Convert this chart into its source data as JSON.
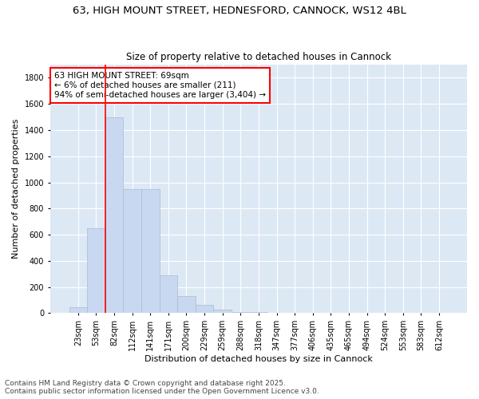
{
  "title_line1": "63, HIGH MOUNT STREET, HEDNESFORD, CANNOCK, WS12 4BL",
  "title_line2": "Size of property relative to detached houses in Cannock",
  "xlabel": "Distribution of detached houses by size in Cannock",
  "ylabel": "Number of detached properties",
  "categories": [
    "23sqm",
    "53sqm",
    "82sqm",
    "112sqm",
    "141sqm",
    "171sqm",
    "200sqm",
    "229sqm",
    "259sqm",
    "288sqm",
    "318sqm",
    "347sqm",
    "377sqm",
    "406sqm",
    "435sqm",
    "465sqm",
    "494sqm",
    "524sqm",
    "553sqm",
    "583sqm",
    "612sqm"
  ],
  "values": [
    45,
    650,
    1500,
    950,
    950,
    290,
    130,
    65,
    25,
    10,
    10,
    0,
    0,
    0,
    0,
    0,
    0,
    0,
    0,
    0,
    0
  ],
  "bar_color": "#c8d8f0",
  "bar_edgecolor": "#aabbd0",
  "vline_x_index": 1,
  "vline_color": "red",
  "annotation_text": "63 HIGH MOUNT STREET: 69sqm\n← 6% of detached houses are smaller (211)\n94% of semi-detached houses are larger (3,404) →",
  "annotation_box_color": "white",
  "annotation_box_edgecolor": "red",
  "ylim": [
    0,
    1900
  ],
  "yticks": [
    0,
    200,
    400,
    600,
    800,
    1000,
    1200,
    1400,
    1600,
    1800
  ],
  "background_color": "#dde8f5",
  "footer_line1": "Contains HM Land Registry data © Crown copyright and database right 2025.",
  "footer_line2": "Contains public sector information licensed under the Open Government Licence v3.0.",
  "title_fontsize": 9.5,
  "subtitle_fontsize": 8.5,
  "axis_label_fontsize": 8,
  "tick_fontsize": 7,
  "annotation_fontsize": 7.5,
  "footer_fontsize": 6.5
}
